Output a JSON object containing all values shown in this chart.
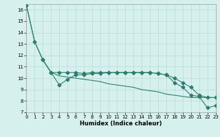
{
  "line_top_x": [
    0,
    1,
    2,
    3,
    4,
    5,
    6,
    7,
    8,
    9,
    10,
    11,
    12,
    13,
    14,
    15,
    16,
    17,
    18,
    19,
    20,
    21,
    22,
    23
  ],
  "line_top_y": [
    16.4,
    13.2,
    11.6,
    10.5,
    10.5,
    10.5,
    10.5,
    10.4,
    10.5,
    10.5,
    10.5,
    10.5,
    10.5,
    10.5,
    10.5,
    10.5,
    10.4,
    10.3,
    10.0,
    9.6,
    9.2,
    8.5,
    8.3,
    8.3
  ],
  "line_mid_x": [
    0,
    1,
    2,
    3,
    4,
    5,
    6,
    7,
    8,
    9,
    10,
    11,
    12,
    13,
    14,
    15,
    16,
    17,
    18,
    19,
    20,
    21,
    22,
    23
  ],
  "line_mid_y": [
    16.4,
    13.2,
    11.6,
    10.5,
    10.2,
    10.1,
    10.0,
    9.9,
    9.8,
    9.7,
    9.5,
    9.4,
    9.3,
    9.2,
    9.0,
    8.9,
    8.8,
    8.6,
    8.5,
    8.4,
    8.3,
    8.3,
    8.3,
    8.3
  ],
  "line_bot_x": [
    2,
    3,
    4,
    5,
    6,
    7,
    8,
    9,
    10,
    11,
    12,
    13,
    14,
    15,
    16,
    17,
    18,
    19,
    20,
    21,
    22,
    23
  ],
  "line_bot_y": [
    11.6,
    10.5,
    9.4,
    9.9,
    10.3,
    10.3,
    10.4,
    10.4,
    10.5,
    10.5,
    10.5,
    10.5,
    10.5,
    10.5,
    10.4,
    10.3,
    9.6,
    9.2,
    8.5,
    8.4,
    7.4,
    7.6
  ],
  "color": "#2d7d6e",
  "bg_color": "#d6f0ee",
  "grid_color": "#b8dbd8",
  "xlabel": "Humidex (Indice chaleur)",
  "xlim": [
    0,
    23
  ],
  "ylim": [
    7,
    16.5
  ],
  "yticks": [
    7,
    8,
    9,
    10,
    11,
    12,
    13,
    14,
    15,
    16
  ],
  "xticks": [
    0,
    1,
    2,
    3,
    4,
    5,
    6,
    7,
    8,
    9,
    10,
    11,
    12,
    13,
    14,
    15,
    16,
    17,
    18,
    19,
    20,
    21,
    22,
    23
  ],
  "marker": "D",
  "marker_size": 2.5,
  "lw": 0.8
}
